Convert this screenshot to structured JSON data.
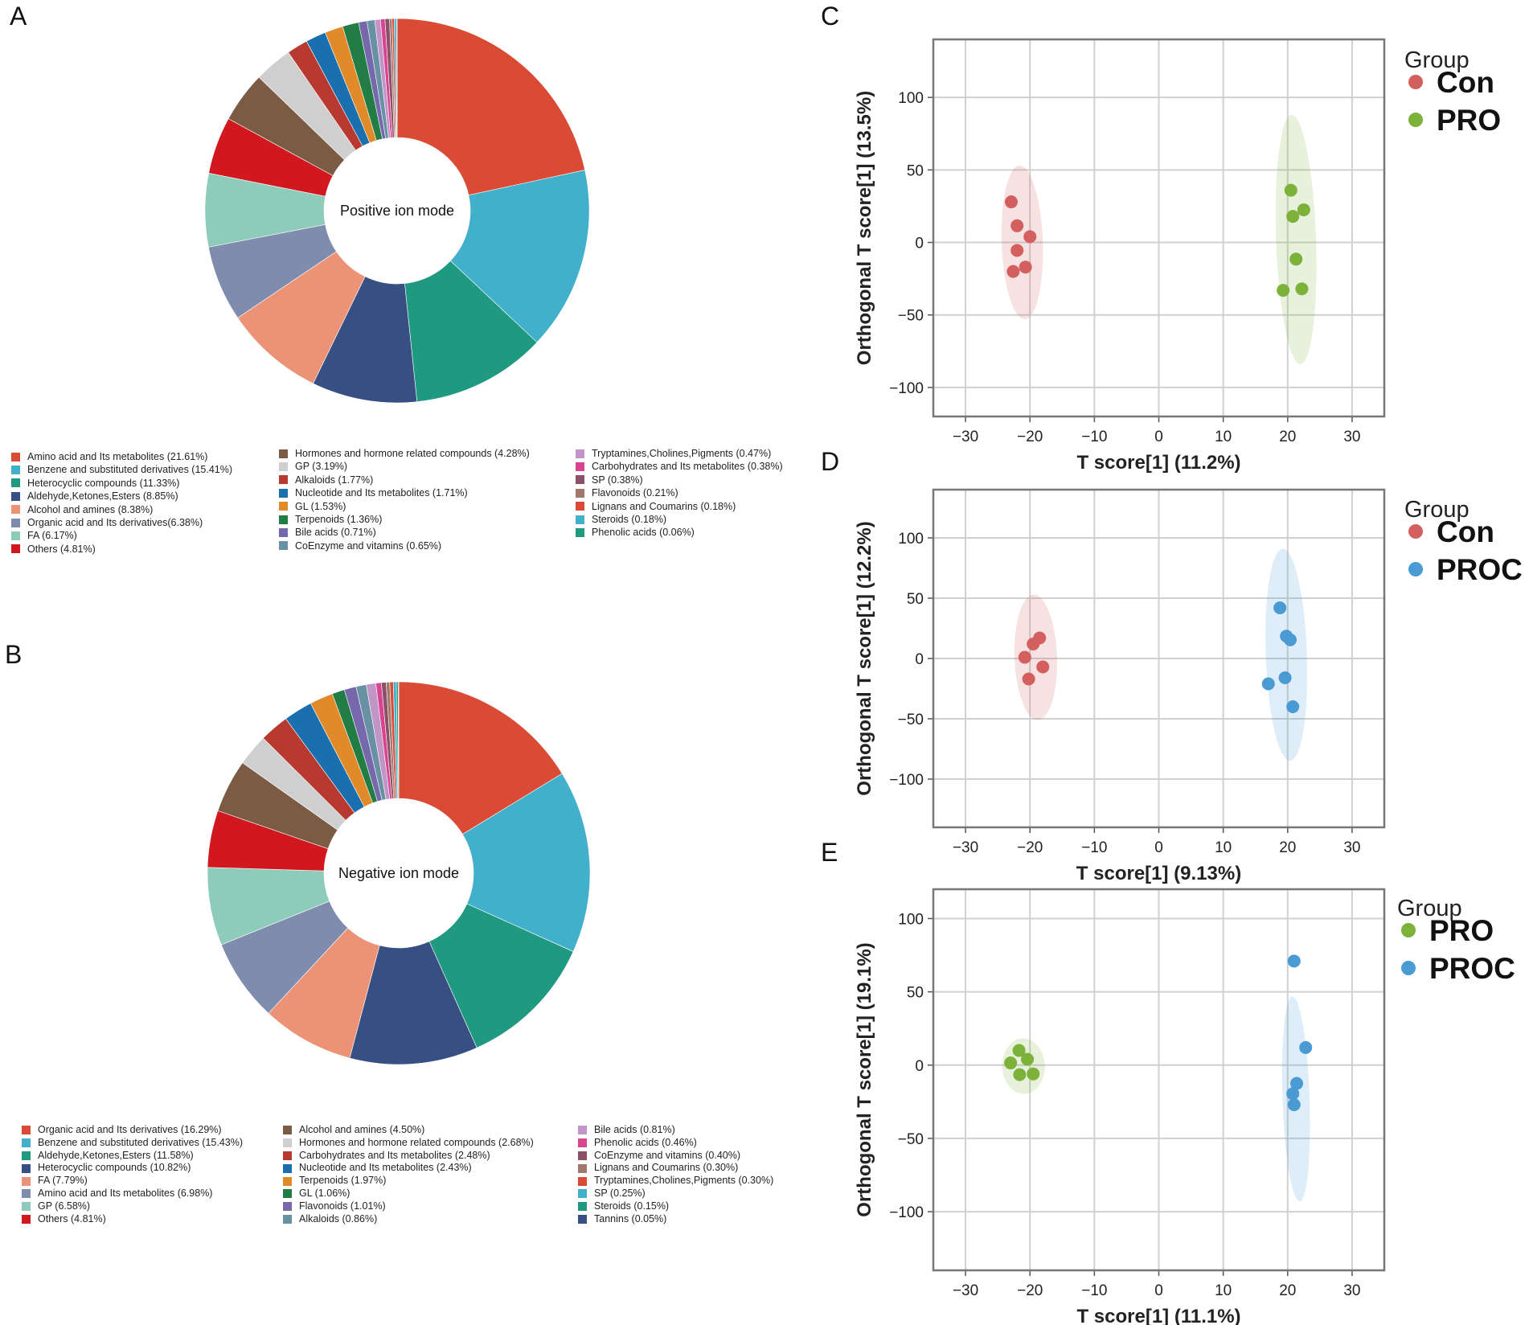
{
  "panel_labels": {
    "a": "A",
    "b": "B",
    "c": "C",
    "d": "D",
    "e": "E"
  },
  "chart_data": [
    {
      "type": "pie",
      "id": "A",
      "title": "Positive ion mode",
      "donut": true,
      "slices": [
        {
          "label": "Amino acid and Its metabolites (21.61%)",
          "value": 21.61,
          "color": "#d94b35"
        },
        {
          "label": "Benzene and substituted derivatives (15.41%)",
          "value": 15.41,
          "color": "#42b0cb"
        },
        {
          "label": "Heterocyclic compounds (11.33%)",
          "value": 11.33,
          "color": "#1f9a80"
        },
        {
          "label": "Aldehyde,Ketones,Esters (8.85%)",
          "value": 8.85,
          "color": "#374f82"
        },
        {
          "label": "Alcohol and amines (8.38%)",
          "value": 8.38,
          "color": "#ec9377"
        },
        {
          "label": "Organic acid and Its derivatives(6.38%)",
          "value": 6.38,
          "color": "#7f8cae"
        },
        {
          "label": "FA (6.17%)",
          "value": 6.17,
          "color": "#8ecbbb"
        },
        {
          "label": "Others (4.81%)",
          "value": 4.81,
          "color": "#d0181e"
        },
        {
          "label": "Hormones and hormone related compounds (4.28%)",
          "value": 4.28,
          "color": "#7c5b45"
        },
        {
          "label": "GP (3.19%)",
          "value": 3.19,
          "color": "#cfcfcf"
        },
        {
          "label": "Alkaloids (1.77%)",
          "value": 1.77,
          "color": "#b7392f"
        },
        {
          "label": "Nucleotide and Its metabolites (1.71%)",
          "value": 1.71,
          "color": "#1a6fae"
        },
        {
          "label": "GL (1.53%)",
          "value": 1.53,
          "color": "#e08a2a"
        },
        {
          "label": "Terpenoids (1.36%)",
          "value": 1.36,
          "color": "#217d44"
        },
        {
          "label": "Bile acids (0.71%)",
          "value": 0.71,
          "color": "#7569ac"
        },
        {
          "label": "CoEnzyme and vitamins (0.65%)",
          "value": 0.65,
          "color": "#6892a3"
        },
        {
          "label": "Tryptamines,Cholines,Pigments (0.47%)",
          "value": 0.47,
          "color": "#c295c7"
        },
        {
          "label": "Carbohydrates and Its metabolites (0.38%)",
          "value": 0.38,
          "color": "#d8448f"
        },
        {
          "label": "SP (0.38%)",
          "value": 0.38,
          "color": "#8c5069"
        },
        {
          "label": "Flavonoids (0.21%)",
          "value": 0.21,
          "color": "#a0796c"
        },
        {
          "label": "Lignans and Coumarins (0.18%)",
          "value": 0.18,
          "color": "#d94b35"
        },
        {
          "label": "Steroids (0.18%)",
          "value": 0.18,
          "color": "#42b0cb"
        },
        {
          "label": "Phenolic acids (0.06%)",
          "value": 0.06,
          "color": "#1f9a80"
        }
      ]
    },
    {
      "type": "pie",
      "id": "B",
      "title": "Negative ion mode",
      "donut": true,
      "slices": [
        {
          "label": "Organic acid and Its derivatives (16.29%)",
          "value": 16.29,
          "color": "#d94b35"
        },
        {
          "label": "Benzene and substituted derivatives (15.43%)",
          "value": 15.43,
          "color": "#42b0cb"
        },
        {
          "label": "Aldehyde,Ketones,Esters (11.58%)",
          "value": 11.58,
          "color": "#1f9a80"
        },
        {
          "label": "Heterocyclic compounds (10.82%)",
          "value": 10.82,
          "color": "#374f82"
        },
        {
          "label": "FA (7.79%)",
          "value": 7.79,
          "color": "#ec9377"
        },
        {
          "label": "Amino acid and Its metabolites (6.98%)",
          "value": 6.98,
          "color": "#7f8cae"
        },
        {
          "label": "GP (6.58%)",
          "value": 6.58,
          "color": "#8ecbbb"
        },
        {
          "label": "Others (4.81%)",
          "value": 4.81,
          "color": "#d0181e"
        },
        {
          "label": "Alcohol and amines (4.50%)",
          "value": 4.5,
          "color": "#7c5b45"
        },
        {
          "label": "Hormones and hormone related compounds (2.68%)",
          "value": 2.68,
          "color": "#cfcfcf"
        },
        {
          "label": "Carbohydrates and Its metabolites (2.48%)",
          "value": 2.48,
          "color": "#b7392f"
        },
        {
          "label": "Nucleotide and Its metabolites (2.43%)",
          "value": 2.43,
          "color": "#1a6fae"
        },
        {
          "label": "Terpenoids (1.97%)",
          "value": 1.97,
          "color": "#e08a2a"
        },
        {
          "label": "GL (1.06%)",
          "value": 1.06,
          "color": "#217d44"
        },
        {
          "label": "Flavonoids (1.01%)",
          "value": 1.01,
          "color": "#7569ac"
        },
        {
          "label": "Alkaloids (0.86%)",
          "value": 0.86,
          "color": "#6892a3"
        },
        {
          "label": "Bile acids (0.81%)",
          "value": 0.81,
          "color": "#c295c7"
        },
        {
          "label": "Phenolic acids (0.46%)",
          "value": 0.46,
          "color": "#d8448f"
        },
        {
          "label": "CoEnzyme and vitamins (0.40%)",
          "value": 0.4,
          "color": "#8c5069"
        },
        {
          "label": "Lignans and Coumarins (0.30%)",
          "value": 0.3,
          "color": "#a0796c"
        },
        {
          "label": "Tryptamines,Cholines,Pigments (0.30%)",
          "value": 0.3,
          "color": "#d94b35"
        },
        {
          "label": "SP (0.25%)",
          "value": 0.25,
          "color": "#42b0cb"
        },
        {
          "label": "Steroids (0.15%)",
          "value": 0.15,
          "color": "#1f9a80"
        },
        {
          "label": "Tannins (0.05%)",
          "value": 0.05,
          "color": "#374f82"
        }
      ]
    },
    {
      "type": "scatter",
      "id": "C",
      "xlabel": "T score[1] (11.2%)",
      "ylabel": "Orthogonal T score[1] (13.5%)",
      "xlim": [
        -35,
        35
      ],
      "ylim": [
        -120,
        140
      ],
      "xticks": [
        -30,
        -20,
        -10,
        0,
        10,
        20,
        30
      ],
      "yticks": [
        -100,
        -50,
        0,
        50,
        100
      ],
      "grid": true,
      "legend_title": "Group",
      "series": [
        {
          "name": "Con",
          "color": "#d45f5f",
          "ellipse": {
            "cx": -21.2,
            "cy": 0,
            "rx": 3.2,
            "ry": 53
          },
          "points": [
            [
              -22.9,
              28
            ],
            [
              -22,
              11.5
            ],
            [
              -20,
              4
            ],
            [
              -22,
              -5.5
            ],
            [
              -20.7,
              -17
            ],
            [
              -22.6,
              -20
            ]
          ]
        },
        {
          "name": "PRO",
          "color": "#7cb13a",
          "ellipse": {
            "cx": 21.3,
            "cy": 2,
            "rx": 3.1,
            "ry": 86
          },
          "points": [
            [
              20.5,
              36
            ],
            [
              22.5,
              22.5
            ],
            [
              20.8,
              18
            ],
            [
              21.3,
              -11.5
            ],
            [
              19.3,
              -33
            ],
            [
              22.2,
              -32
            ]
          ]
        }
      ]
    },
    {
      "type": "scatter",
      "id": "D",
      "xlabel": "T score[1] (9.13%)",
      "ylabel": "Orthogonal T score[1] (12.2%)",
      "xlim": [
        -35,
        35
      ],
      "ylim": [
        -140,
        140
      ],
      "xticks": [
        -30,
        -20,
        -10,
        0,
        10,
        20,
        30
      ],
      "yticks": [
        -100,
        -50,
        0,
        50,
        100
      ],
      "grid": true,
      "legend_title": "Group",
      "series": [
        {
          "name": "Con",
          "color": "#d45f5f",
          "ellipse": {
            "cx": -19.1,
            "cy": 1,
            "rx": 3.3,
            "ry": 52
          },
          "points": [
            [
              -19.5,
              12
            ],
            [
              -18.5,
              17
            ],
            [
              -20.8,
              1
            ],
            [
              -18,
              -7
            ],
            [
              -20.2,
              -17
            ]
          ]
        },
        {
          "name": "PROC",
          "color": "#4a9ad4",
          "ellipse": {
            "cx": 19.8,
            "cy": 3,
            "rx": 3.2,
            "ry": 88
          },
          "points": [
            [
              18.8,
              42
            ],
            [
              19.8,
              18.5
            ],
            [
              20.4,
              15.5
            ],
            [
              19.6,
              -16
            ],
            [
              17,
              -21
            ],
            [
              20.8,
              -40
            ]
          ]
        }
      ]
    },
    {
      "type": "scatter",
      "id": "E",
      "xlabel": "T score[1] (11.1%)",
      "ylabel": "Orthogonal T score[1] (19.1%)",
      "xlim": [
        -35,
        35
      ],
      "ylim": [
        -140,
        120
      ],
      "xticks": [
        -30,
        -20,
        -10,
        0,
        10,
        20,
        30
      ],
      "yticks": [
        -100,
        -50,
        0,
        50,
        100
      ],
      "grid": true,
      "legend_title": "Group",
      "series": [
        {
          "name": "PRO",
          "color": "#7cb13a",
          "ellipse": {
            "cx": -21,
            "cy": -0.7,
            "rx": 3.3,
            "ry": 19
          },
          "points": [
            [
              -21.7,
              10
            ],
            [
              -23,
              1.5
            ],
            [
              -20.4,
              4
            ],
            [
              -21.6,
              -6.5
            ],
            [
              -19.5,
              -6
            ]
          ]
        },
        {
          "name": "PROC",
          "color": "#4a9ad4",
          "ellipse": {
            "cx": 21.3,
            "cy": -23,
            "rx": 2.1,
            "ry": 70
          },
          "points": [
            [
              21,
              71
            ],
            [
              22.8,
              12
            ],
            [
              21.4,
              -12.5
            ],
            [
              20.8,
              -19.5
            ],
            [
              21,
              -27
            ]
          ]
        }
      ]
    }
  ]
}
